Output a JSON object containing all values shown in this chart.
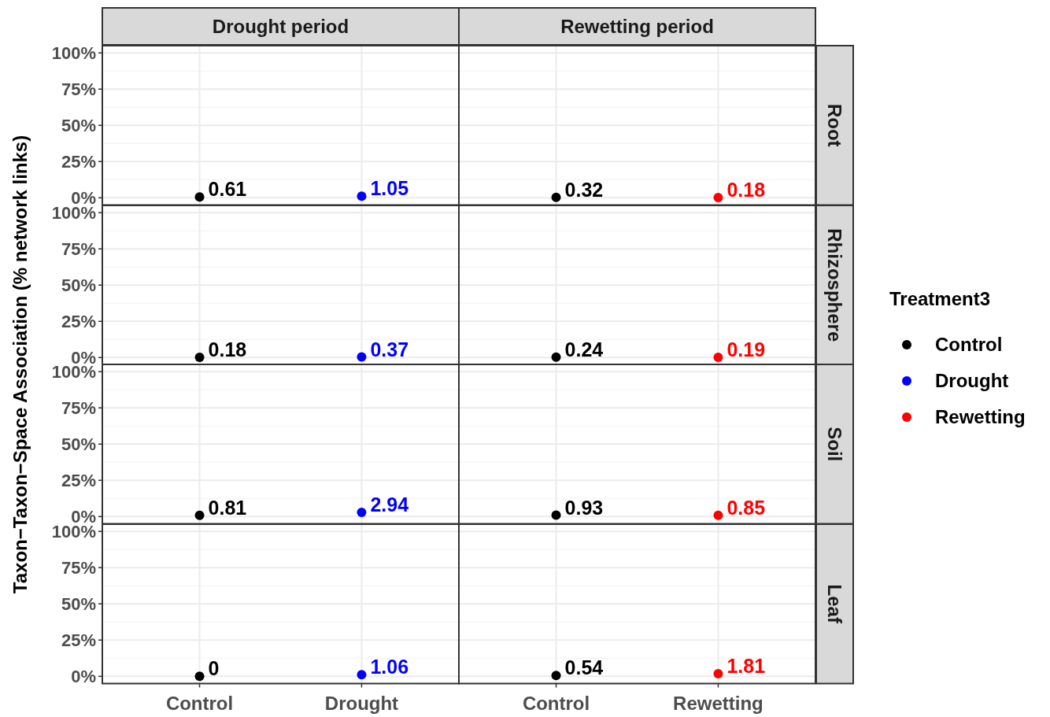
{
  "chart_data": [
    {
      "type": "scatter",
      "title": "Root",
      "annotations": [
        "Drought period",
        "Rewetting period"
      ],
      "ylabel": "Taxon−Taxon−Space Association (% network links)",
      "categories": [
        "Control",
        "Drought",
        "Control",
        "Rewetting"
      ],
      "series": [
        {
          "name": "Control",
          "color": "#000000",
          "values": [
            0.61,
            null,
            0.32,
            null
          ]
        },
        {
          "name": "Drought",
          "color": "#0000ff",
          "values": [
            null,
            1.05,
            null,
            null
          ]
        },
        {
          "name": "Rewetting",
          "color": "#ff0000",
          "values": [
            null,
            null,
            null,
            0.18
          ]
        }
      ],
      "ylim": [
        -5,
        105
      ],
      "yticks": [
        {
          "value": 0,
          "label": "0%"
        },
        {
          "value": 25,
          "label": "25%"
        },
        {
          "value": 50,
          "label": "50%"
        },
        {
          "value": 75,
          "label": "75%"
        },
        {
          "value": 100,
          "label": "100%"
        }
      ],
      "grid": true,
      "data_labels": true,
      "tick_labels": "y",
      "legend": "right",
      "legend_title": "Treatment3"
    },
    {
      "type": "scatter",
      "title": "Rhizosphere",
      "categories": [
        "Control",
        "Drought",
        "Control",
        "Rewetting"
      ],
      "series": [
        {
          "name": "Control",
          "color": "#000000",
          "values": [
            0.18,
            null,
            0.24,
            null
          ]
        },
        {
          "name": "Drought",
          "color": "#0000ff",
          "values": [
            null,
            0.37,
            null,
            null
          ]
        },
        {
          "name": "Rewetting",
          "color": "#ff0000",
          "values": [
            null,
            null,
            null,
            0.19
          ]
        }
      ],
      "ylim": [
        -5,
        105
      ],
      "yticks": [
        {
          "value": 0,
          "label": "0%"
        },
        {
          "value": 25,
          "label": "25%"
        },
        {
          "value": 50,
          "label": "50%"
        },
        {
          "value": 75,
          "label": "75%"
        },
        {
          "value": 100,
          "label": "100%"
        }
      ],
      "grid": true,
      "data_labels": true,
      "tick_labels": "y"
    },
    {
      "type": "scatter",
      "title": "Soil",
      "categories": [
        "Control",
        "Drought",
        "Control",
        "Rewetting"
      ],
      "series": [
        {
          "name": "Control",
          "color": "#000000",
          "values": [
            0.81,
            null,
            0.93,
            null
          ]
        },
        {
          "name": "Drought",
          "color": "#0000ff",
          "values": [
            null,
            2.94,
            null,
            null
          ]
        },
        {
          "name": "Rewetting",
          "color": "#ff0000",
          "values": [
            null,
            null,
            null,
            0.85
          ]
        }
      ],
      "ylim": [
        -5,
        105
      ],
      "yticks": [
        {
          "value": 0,
          "label": "0%"
        },
        {
          "value": 25,
          "label": "25%"
        },
        {
          "value": 50,
          "label": "50%"
        },
        {
          "value": 75,
          "label": "75%"
        },
        {
          "value": 100,
          "label": "100%"
        }
      ],
      "grid": true,
      "data_labels": true,
      "tick_labels": "y"
    },
    {
      "type": "scatter",
      "title": "Leaf",
      "categories": [
        "Control",
        "Drought",
        "Control",
        "Rewetting"
      ],
      "series": [
        {
          "name": "Control",
          "color": "#000000",
          "values": [
            0,
            null,
            0.54,
            null
          ]
        },
        {
          "name": "Drought",
          "color": "#0000ff",
          "values": [
            null,
            1.06,
            null,
            null
          ]
        },
        {
          "name": "Rewetting",
          "color": "#ff0000",
          "values": [
            null,
            null,
            null,
            1.81
          ]
        }
      ],
      "ylim": [
        -5,
        105
      ],
      "yticks": [
        {
          "value": 0,
          "label": "0%"
        },
        {
          "value": 25,
          "label": "25%"
        },
        {
          "value": 50,
          "label": "50%"
        },
        {
          "value": 75,
          "label": "75%"
        },
        {
          "value": 100,
          "label": "100%"
        }
      ],
      "grid": true,
      "data_labels": true
    }
  ]
}
